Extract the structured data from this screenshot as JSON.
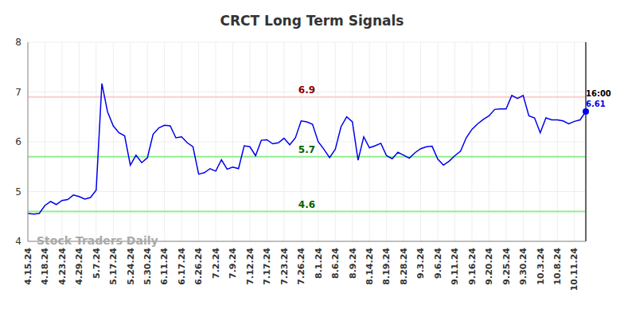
{
  "chart_data": {
    "type": "line",
    "title": "CRCT Long Term Signals",
    "categories": [
      "4.15.24",
      null,
      null,
      "4.18.24",
      null,
      null,
      "4.23.24",
      null,
      null,
      "4.29.24",
      null,
      null,
      "5.7.24",
      null,
      null,
      "5.17.24",
      null,
      null,
      "5.24.24",
      null,
      null,
      "5.30.24",
      null,
      null,
      "6.11.24",
      null,
      null,
      "6.17.24",
      null,
      null,
      "6.26.24",
      null,
      null,
      "7.2.24",
      null,
      null,
      "7.9.24",
      null,
      null,
      "7.12.24",
      null,
      null,
      "7.17.24",
      null,
      null,
      "7.23.24",
      null,
      null,
      "7.26.24",
      null,
      null,
      "8.1.24",
      null,
      null,
      "8.6.24",
      null,
      null,
      "8.9.24",
      null,
      null,
      "8.14.24",
      null,
      null,
      "8.19.24",
      null,
      null,
      "8.28.24",
      null,
      null,
      "9.3.24",
      null,
      null,
      "9.6.24",
      null,
      null,
      "9.11.24",
      null,
      null,
      "9.16.24",
      null,
      null,
      "9.20.24",
      null,
      null,
      "9.25.24",
      null,
      null,
      "9.30.24",
      null,
      null,
      "10.3.24",
      null,
      null,
      "10.8.24",
      null,
      null,
      "10.11.24",
      null,
      null
    ],
    "values": [
      4.56,
      4.55,
      4.56,
      4.72,
      4.8,
      4.74,
      4.82,
      4.84,
      4.93,
      4.9,
      4.85,
      4.88,
      5.03,
      7.17,
      6.6,
      6.32,
      6.18,
      6.12,
      5.53,
      5.73,
      5.58,
      5.68,
      6.15,
      6.28,
      6.33,
      6.32,
      6.08,
      6.1,
      5.98,
      5.9,
      5.35,
      5.38,
      5.46,
      5.41,
      5.64,
      5.45,
      5.49,
      5.46,
      5.92,
      5.9,
      5.72,
      6.03,
      6.04,
      5.96,
      5.98,
      6.07,
      5.94,
      6.08,
      6.42,
      6.4,
      6.35,
      6.0,
      5.85,
      5.68,
      5.85,
      6.3,
      6.5,
      6.4,
      5.63,
      6.1,
      5.88,
      5.92,
      5.97,
      5.72,
      5.66,
      5.79,
      5.73,
      5.67,
      5.78,
      5.86,
      5.9,
      5.91,
      5.65,
      5.53,
      5.61,
      5.72,
      5.81,
      6.08,
      6.25,
      6.36,
      6.45,
      6.52,
      6.65,
      6.66,
      6.66,
      6.93,
      6.87,
      6.93,
      6.52,
      6.48,
      6.18,
      6.48,
      6.44,
      6.44,
      6.42,
      6.36,
      6.41,
      6.44,
      6.61
    ],
    "color": "#0000ee",
    "ylim": [
      4,
      8
    ],
    "yticks": [
      4,
      5,
      6,
      7,
      8
    ],
    "grid": true,
    "reference_lines": [
      {
        "value": 6.9,
        "label": "6.9",
        "color": "#ffcccc",
        "label_color": "#8b0000"
      },
      {
        "value": 5.7,
        "label": "5.7",
        "color": "#90ee90",
        "label_color": "#006400"
      },
      {
        "value": 4.6,
        "label": "4.6",
        "color": "#90ee90",
        "label_color": "#006400"
      }
    ],
    "annotations": [
      "16:00",
      "Stock Traders Daily"
    ]
  }
}
